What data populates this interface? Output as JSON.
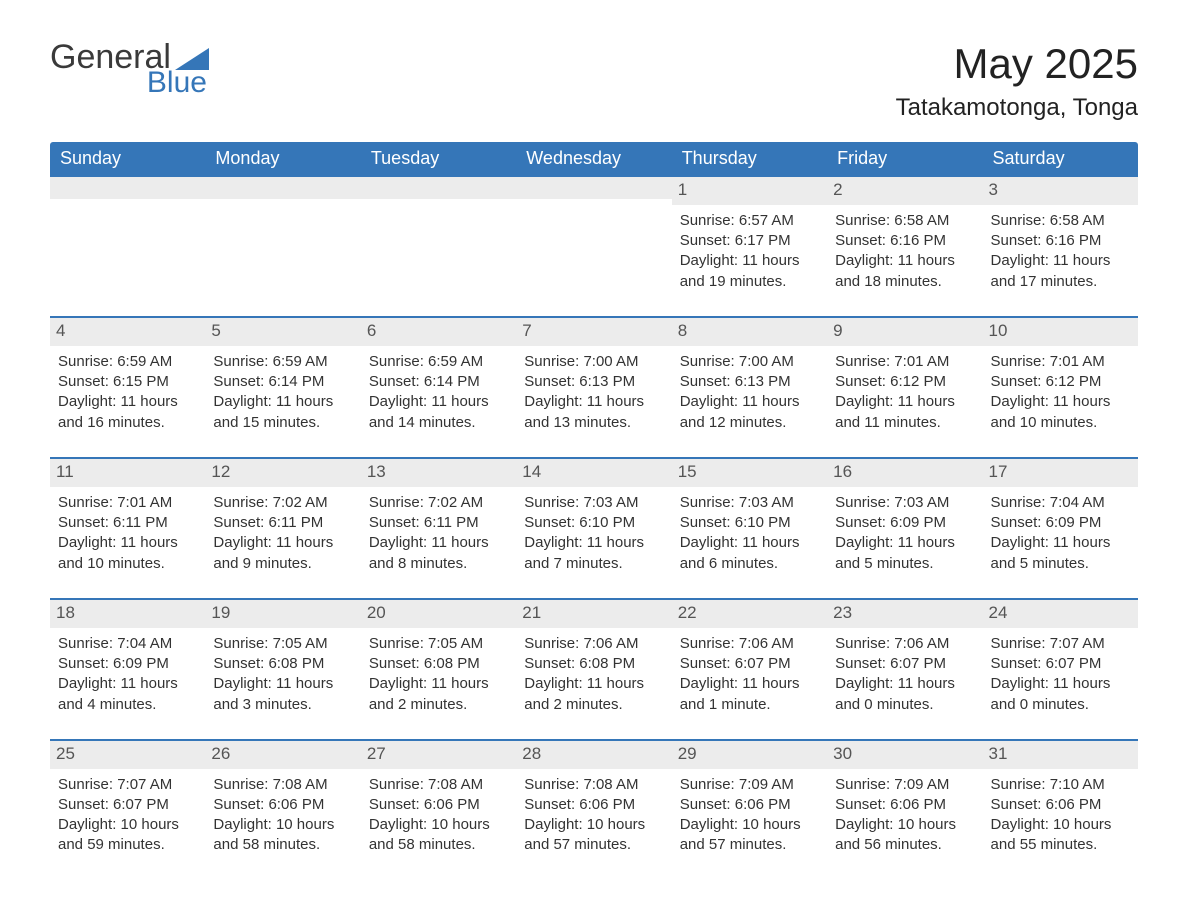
{
  "brand": {
    "word1": "General",
    "word2": "Blue",
    "text_color": "#3a3a3a",
    "accent_color": "#3576b8",
    "triangle_color": "#3576b8"
  },
  "title": {
    "main": "May 2025",
    "location": "Tatakamotonga, Tonga",
    "main_fontsize": 42,
    "sub_fontsize": 24
  },
  "colors": {
    "header_bg": "#3576b8",
    "header_text": "#ffffff",
    "daynum_bg": "#ececec",
    "daynum_text": "#555555",
    "body_text": "#333333",
    "week_divider": "#3576b8",
    "page_bg": "#ffffff"
  },
  "dow": [
    "Sunday",
    "Monday",
    "Tuesday",
    "Wednesday",
    "Thursday",
    "Friday",
    "Saturday"
  ],
  "weeks": [
    [
      {
        "n": "",
        "sr": "",
        "ss": "",
        "dl": ""
      },
      {
        "n": "",
        "sr": "",
        "ss": "",
        "dl": ""
      },
      {
        "n": "",
        "sr": "",
        "ss": "",
        "dl": ""
      },
      {
        "n": "",
        "sr": "",
        "ss": "",
        "dl": ""
      },
      {
        "n": "1",
        "sr": "Sunrise: 6:57 AM",
        "ss": "Sunset: 6:17 PM",
        "dl": "Daylight: 11 hours and 19 minutes."
      },
      {
        "n": "2",
        "sr": "Sunrise: 6:58 AM",
        "ss": "Sunset: 6:16 PM",
        "dl": "Daylight: 11 hours and 18 minutes."
      },
      {
        "n": "3",
        "sr": "Sunrise: 6:58 AM",
        "ss": "Sunset: 6:16 PM",
        "dl": "Daylight: 11 hours and 17 minutes."
      }
    ],
    [
      {
        "n": "4",
        "sr": "Sunrise: 6:59 AM",
        "ss": "Sunset: 6:15 PM",
        "dl": "Daylight: 11 hours and 16 minutes."
      },
      {
        "n": "5",
        "sr": "Sunrise: 6:59 AM",
        "ss": "Sunset: 6:14 PM",
        "dl": "Daylight: 11 hours and 15 minutes."
      },
      {
        "n": "6",
        "sr": "Sunrise: 6:59 AM",
        "ss": "Sunset: 6:14 PM",
        "dl": "Daylight: 11 hours and 14 minutes."
      },
      {
        "n": "7",
        "sr": "Sunrise: 7:00 AM",
        "ss": "Sunset: 6:13 PM",
        "dl": "Daylight: 11 hours and 13 minutes."
      },
      {
        "n": "8",
        "sr": "Sunrise: 7:00 AM",
        "ss": "Sunset: 6:13 PM",
        "dl": "Daylight: 11 hours and 12 minutes."
      },
      {
        "n": "9",
        "sr": "Sunrise: 7:01 AM",
        "ss": "Sunset: 6:12 PM",
        "dl": "Daylight: 11 hours and 11 minutes."
      },
      {
        "n": "10",
        "sr": "Sunrise: 7:01 AM",
        "ss": "Sunset: 6:12 PM",
        "dl": "Daylight: 11 hours and 10 minutes."
      }
    ],
    [
      {
        "n": "11",
        "sr": "Sunrise: 7:01 AM",
        "ss": "Sunset: 6:11 PM",
        "dl": "Daylight: 11 hours and 10 minutes."
      },
      {
        "n": "12",
        "sr": "Sunrise: 7:02 AM",
        "ss": "Sunset: 6:11 PM",
        "dl": "Daylight: 11 hours and 9 minutes."
      },
      {
        "n": "13",
        "sr": "Sunrise: 7:02 AM",
        "ss": "Sunset: 6:11 PM",
        "dl": "Daylight: 11 hours and 8 minutes."
      },
      {
        "n": "14",
        "sr": "Sunrise: 7:03 AM",
        "ss": "Sunset: 6:10 PM",
        "dl": "Daylight: 11 hours and 7 minutes."
      },
      {
        "n": "15",
        "sr": "Sunrise: 7:03 AM",
        "ss": "Sunset: 6:10 PM",
        "dl": "Daylight: 11 hours and 6 minutes."
      },
      {
        "n": "16",
        "sr": "Sunrise: 7:03 AM",
        "ss": "Sunset: 6:09 PM",
        "dl": "Daylight: 11 hours and 5 minutes."
      },
      {
        "n": "17",
        "sr": "Sunrise: 7:04 AM",
        "ss": "Sunset: 6:09 PM",
        "dl": "Daylight: 11 hours and 5 minutes."
      }
    ],
    [
      {
        "n": "18",
        "sr": "Sunrise: 7:04 AM",
        "ss": "Sunset: 6:09 PM",
        "dl": "Daylight: 11 hours and 4 minutes."
      },
      {
        "n": "19",
        "sr": "Sunrise: 7:05 AM",
        "ss": "Sunset: 6:08 PM",
        "dl": "Daylight: 11 hours and 3 minutes."
      },
      {
        "n": "20",
        "sr": "Sunrise: 7:05 AM",
        "ss": "Sunset: 6:08 PM",
        "dl": "Daylight: 11 hours and 2 minutes."
      },
      {
        "n": "21",
        "sr": "Sunrise: 7:06 AM",
        "ss": "Sunset: 6:08 PM",
        "dl": "Daylight: 11 hours and 2 minutes."
      },
      {
        "n": "22",
        "sr": "Sunrise: 7:06 AM",
        "ss": "Sunset: 6:07 PM",
        "dl": "Daylight: 11 hours and 1 minute."
      },
      {
        "n": "23",
        "sr": "Sunrise: 7:06 AM",
        "ss": "Sunset: 6:07 PM",
        "dl": "Daylight: 11 hours and 0 minutes."
      },
      {
        "n": "24",
        "sr": "Sunrise: 7:07 AM",
        "ss": "Sunset: 6:07 PM",
        "dl": "Daylight: 11 hours and 0 minutes."
      }
    ],
    [
      {
        "n": "25",
        "sr": "Sunrise: 7:07 AM",
        "ss": "Sunset: 6:07 PM",
        "dl": "Daylight: 10 hours and 59 minutes."
      },
      {
        "n": "26",
        "sr": "Sunrise: 7:08 AM",
        "ss": "Sunset: 6:06 PM",
        "dl": "Daylight: 10 hours and 58 minutes."
      },
      {
        "n": "27",
        "sr": "Sunrise: 7:08 AM",
        "ss": "Sunset: 6:06 PM",
        "dl": "Daylight: 10 hours and 58 minutes."
      },
      {
        "n": "28",
        "sr": "Sunrise: 7:08 AM",
        "ss": "Sunset: 6:06 PM",
        "dl": "Daylight: 10 hours and 57 minutes."
      },
      {
        "n": "29",
        "sr": "Sunrise: 7:09 AM",
        "ss": "Sunset: 6:06 PM",
        "dl": "Daylight: 10 hours and 57 minutes."
      },
      {
        "n": "30",
        "sr": "Sunrise: 7:09 AM",
        "ss": "Sunset: 6:06 PM",
        "dl": "Daylight: 10 hours and 56 minutes."
      },
      {
        "n": "31",
        "sr": "Sunrise: 7:10 AM",
        "ss": "Sunset: 6:06 PM",
        "dl": "Daylight: 10 hours and 55 minutes."
      }
    ]
  ]
}
